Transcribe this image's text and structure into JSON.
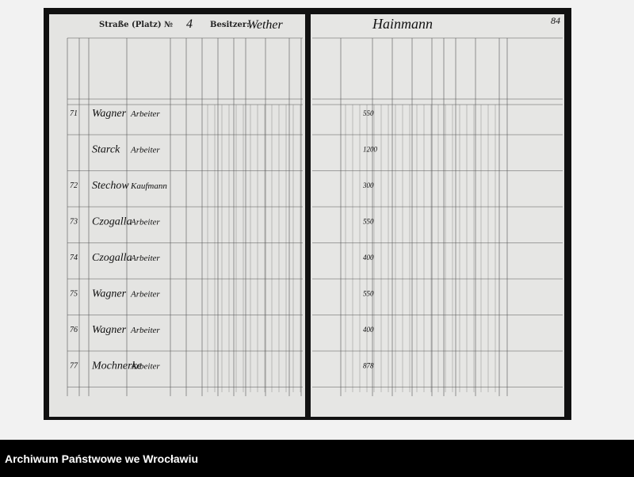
{
  "header": {
    "street_label": "Straße (Platz) №",
    "house_number": "4",
    "owner_label": "Besitzer:",
    "owner": "Wether",
    "right_owner": "Hainmann",
    "page_number": "84"
  },
  "table": {
    "rows": [
      [
        "71",
        "Wagner",
        "Arbeiter",
        "550"
      ],
      [
        "",
        "Starck",
        "Arbeiter",
        "1200"
      ],
      [
        "72",
        "Stechow",
        "Kaufmann",
        "300"
      ],
      [
        "73",
        "Czogalla",
        "Arbeiter",
        "550"
      ],
      [
        "74",
        "Czogalla",
        "Arbeiter",
        "400"
      ],
      [
        "75",
        "Wagner",
        "Arbeiter",
        "550"
      ],
      [
        "76",
        "Wagner",
        "Arbeiter",
        "400"
      ],
      [
        "77",
        "Mochnerke",
        "Arbeiter",
        "878"
      ]
    ]
  },
  "footer": {
    "archive": "Archiwum Państwowe we Wrocławiu"
  }
}
